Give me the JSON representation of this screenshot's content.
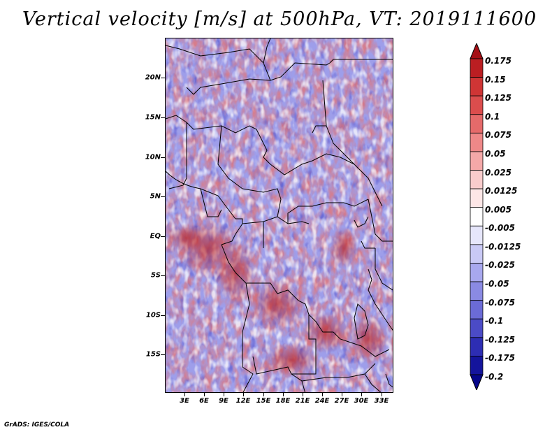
{
  "title": "Vertical velocity [m/s] at 500hPa, VT: 2019111600",
  "credit": "GrADS: IGES/COLA",
  "lat_labels": [
    "20N",
    "15N",
    "10N",
    "5N",
    "EQ",
    "5S",
    "10S",
    "15S"
  ],
  "lon_labels": [
    "3E",
    "6E",
    "9E",
    "12E",
    "15E",
    "18E",
    "21E",
    "24E",
    "27E",
    "30E",
    "33E"
  ],
  "colorbar": {
    "labels": [
      "0.175",
      "0.15",
      "0.125",
      "0.1",
      "0.075",
      "0.05",
      "0.025",
      "0.0125",
      "0.005",
      "-0.005",
      "-0.0125",
      "-0.025",
      "-0.05",
      "-0.075",
      "-0.1",
      "-0.125",
      "-0.175",
      "-0.2"
    ],
    "colors": [
      "#a50f15",
      "#bb1e22",
      "#cf3535",
      "#db4d4d",
      "#e56a6a",
      "#ee8888",
      "#f4a8a8",
      "#f9cccc",
      "#fde6e6",
      "#ffffff",
      "#e6e6fb",
      "#c9c9f5",
      "#a8a8ee",
      "#8a8ae3",
      "#6b6bd6",
      "#4b4bc6",
      "#2d2db3",
      "#14149c",
      "#06068a"
    ]
  }
}
